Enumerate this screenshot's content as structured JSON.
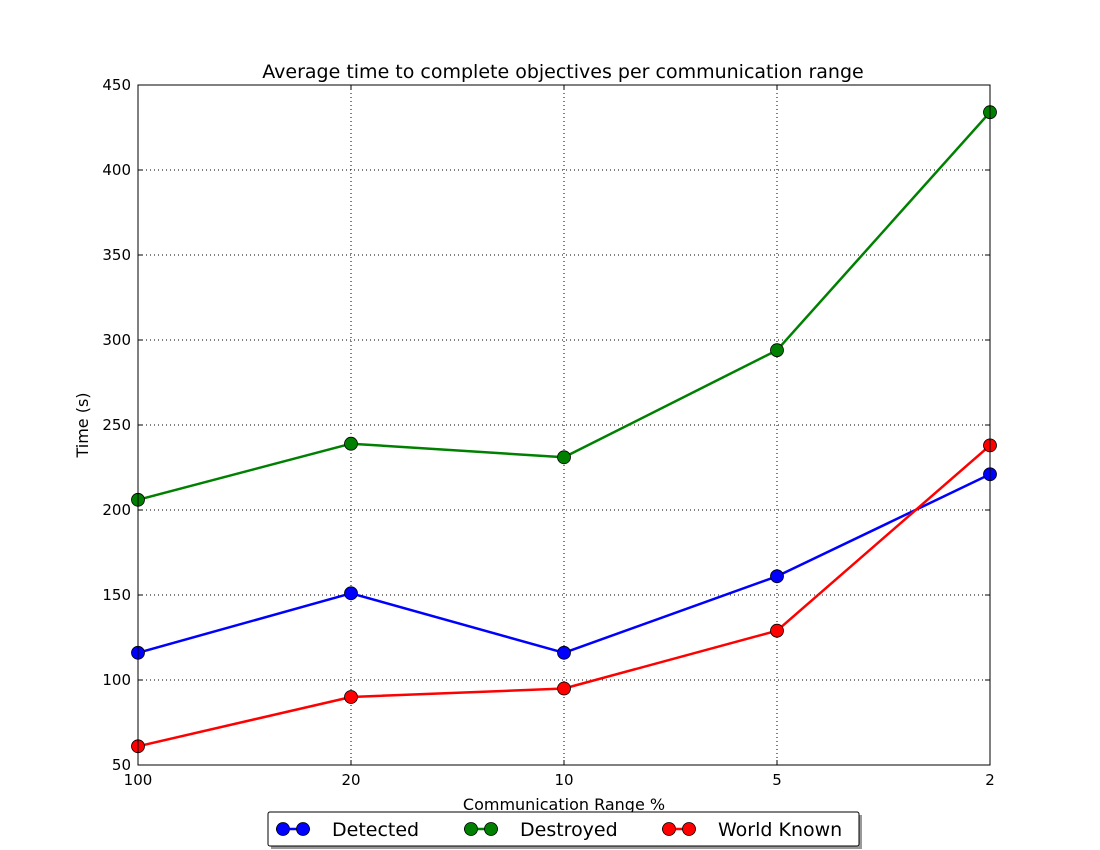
{
  "chart_data": {
    "type": "line",
    "title": "Average time to complete objectives per communication range",
    "xlabel": "Communication Range %",
    "ylabel": "Time (s)",
    "categories": [
      "100",
      "20",
      "10",
      "5",
      "2"
    ],
    "ylim": [
      50,
      450
    ],
    "yticks": [
      "50",
      "100",
      "150",
      "200",
      "250",
      "300",
      "350",
      "400",
      "450"
    ],
    "grid": true,
    "legend_position": "bottom-center",
    "series": [
      {
        "name": "Detected",
        "color": "#0000ff",
        "values": [
          116,
          151,
          116,
          161,
          221
        ]
      },
      {
        "name": "Destroyed",
        "color": "#008000",
        "values": [
          206,
          239,
          231,
          294,
          434
        ]
      },
      {
        "name": "World Known",
        "color": "#ff0000",
        "values": [
          61,
          90,
          95,
          129,
          238
        ]
      }
    ]
  }
}
